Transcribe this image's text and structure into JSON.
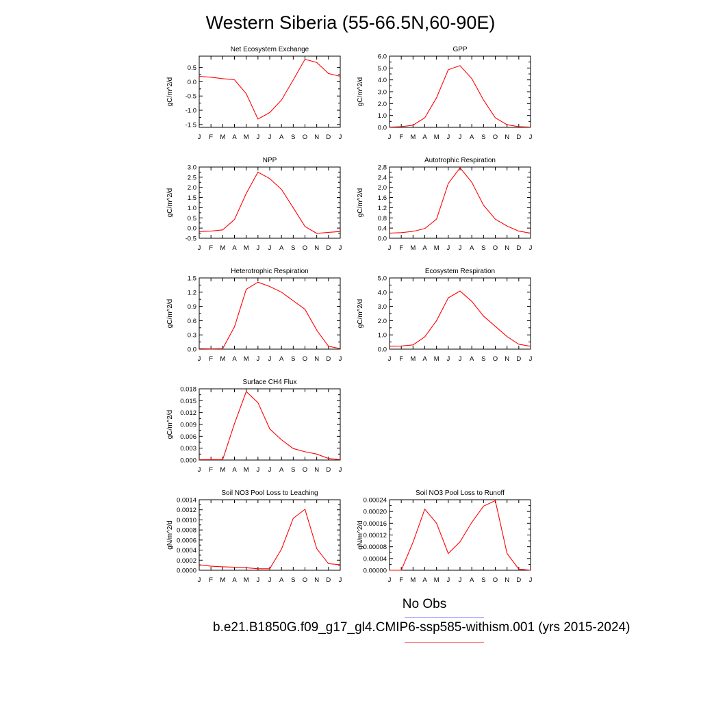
{
  "title": "Western Siberia (55-66.5N,60-90E)",
  "legend": {
    "obs_label": "No Obs",
    "obs_color": "#7f7fff",
    "model_label": "b.e21.B1850G.f09_g17_gl4.CMIP6-ssp585-withism.001 (yrs 2015-2024)",
    "model_color": "#ff7f7f"
  },
  "line_color": "#ff0000",
  "chart_data": [
    {
      "type": "line",
      "title": "Net Ecosystem Exchange",
      "ylabel": "gC/m^2/d",
      "xticks": [
        "J",
        "F",
        "M",
        "A",
        "M",
        "J",
        "J",
        "A",
        "S",
        "O",
        "N",
        "D",
        "J"
      ],
      "ylim": [
        -1.6,
        0.9
      ],
      "yticks": [
        -1.5,
        -1.0,
        -0.5,
        0.0,
        0.5
      ],
      "ytick_labels": [
        "-1.5",
        "-1.0",
        "-0.5",
        "0.0",
        "0.5"
      ],
      "series": [
        {
          "values": [
            0.19,
            0.16,
            0.11,
            0.07,
            -0.42,
            -1.31,
            -1.08,
            -0.64,
            0.06,
            0.79,
            0.68,
            0.29,
            0.19
          ]
        }
      ]
    },
    {
      "type": "line",
      "title": "GPP",
      "ylabel": "gC/m^2/d",
      "xticks": [
        "J",
        "F",
        "M",
        "A",
        "M",
        "J",
        "J",
        "A",
        "S",
        "O",
        "N",
        "D",
        "J"
      ],
      "ylim": [
        0.0,
        6.0
      ],
      "yticks": [
        0.0,
        1.0,
        2.0,
        3.0,
        4.0,
        5.0,
        6.0
      ],
      "ytick_labels": [
        "0.0",
        "1.0",
        "2.0",
        "3.0",
        "4.0",
        "5.0",
        "6.0"
      ],
      "series": [
        {
          "values": [
            0.02,
            0.06,
            0.18,
            0.8,
            2.5,
            4.85,
            5.2,
            4.1,
            2.3,
            0.8,
            0.22,
            0.06,
            0.02
          ]
        }
      ]
    },
    {
      "type": "line",
      "title": "NPP",
      "ylabel": "gC/m^2/d",
      "xticks": [
        "J",
        "F",
        "M",
        "A",
        "M",
        "J",
        "J",
        "A",
        "S",
        "O",
        "N",
        "D",
        "J"
      ],
      "ylim": [
        -0.5,
        3.0
      ],
      "yticks": [
        -0.5,
        0.0,
        0.5,
        1.0,
        1.5,
        2.0,
        2.5,
        3.0
      ],
      "ytick_labels": [
        "-0.5",
        "0.0",
        "0.5",
        "1.0",
        "1.5",
        "2.0",
        "2.5",
        "3.0"
      ],
      "series": [
        {
          "values": [
            -0.17,
            -0.15,
            -0.09,
            0.42,
            1.7,
            2.75,
            2.43,
            1.9,
            1.0,
            0.08,
            -0.26,
            -0.21,
            -0.17
          ]
        }
      ]
    },
    {
      "type": "line",
      "title": "Autotrophic Respiration",
      "ylabel": "gC/m^2/d",
      "xticks": [
        "J",
        "F",
        "M",
        "A",
        "M",
        "J",
        "J",
        "A",
        "S",
        "O",
        "N",
        "D",
        "J"
      ],
      "ylim": [
        0.0,
        2.8
      ],
      "yticks": [
        0.0,
        0.4,
        0.8,
        1.2,
        1.6,
        2.0,
        2.4,
        2.8
      ],
      "ytick_labels": [
        "0.0",
        "0.4",
        "0.8",
        "1.2",
        "1.6",
        "2.0",
        "2.4",
        "2.8"
      ],
      "series": [
        {
          "values": [
            0.2,
            0.22,
            0.27,
            0.38,
            0.75,
            2.15,
            2.77,
            2.2,
            1.3,
            0.75,
            0.48,
            0.28,
            0.2
          ]
        }
      ]
    },
    {
      "type": "line",
      "title": "Heterotrophic Respiration",
      "ylabel": "gC/m^2/d",
      "xticks": [
        "J",
        "F",
        "M",
        "A",
        "M",
        "J",
        "J",
        "A",
        "S",
        "O",
        "N",
        "D",
        "J"
      ],
      "ylim": [
        0.0,
        1.5
      ],
      "yticks": [
        0.0,
        0.3,
        0.6,
        0.9,
        1.2,
        1.5
      ],
      "ytick_labels": [
        "0.0",
        "0.3",
        "0.6",
        "0.9",
        "1.2",
        "1.5"
      ],
      "series": [
        {
          "values": [
            0.01,
            0.005,
            0.01,
            0.47,
            1.26,
            1.41,
            1.32,
            1.2,
            1.02,
            0.84,
            0.4,
            0.06,
            0.01
          ]
        }
      ]
    },
    {
      "type": "line",
      "title": "Ecosystem Respiration",
      "ylabel": "gC/m^2/d",
      "xticks": [
        "J",
        "F",
        "M",
        "A",
        "M",
        "J",
        "J",
        "A",
        "S",
        "O",
        "N",
        "D",
        "J"
      ],
      "ylim": [
        0.0,
        5.0
      ],
      "yticks": [
        0.0,
        1.0,
        2.0,
        3.0,
        4.0,
        5.0
      ],
      "ytick_labels": [
        "0.0",
        "1.0",
        "2.0",
        "3.0",
        "4.0",
        "5.0"
      ],
      "series": [
        {
          "values": [
            0.2,
            0.22,
            0.3,
            0.86,
            2.0,
            3.6,
            4.08,
            3.35,
            2.32,
            1.6,
            0.88,
            0.34,
            0.2
          ]
        }
      ]
    },
    {
      "type": "line",
      "title": "Surface CH4 Flux",
      "ylabel": "gC/m^2/d",
      "xticks": [
        "J",
        "F",
        "M",
        "A",
        "M",
        "J",
        "J",
        "A",
        "S",
        "O",
        "N",
        "D",
        "J"
      ],
      "ylim": [
        0.0,
        0.018
      ],
      "yticks": [
        0.0,
        0.003,
        0.006,
        0.009,
        0.012,
        0.015,
        0.018
      ],
      "ytick_labels": [
        "0.000",
        "0.003",
        "0.006",
        "0.009",
        "0.012",
        "0.015",
        "0.018"
      ],
      "series": [
        {
          "values": [
            0.0001,
            0.0001,
            0.0001,
            0.0092,
            0.0173,
            0.0145,
            0.0079,
            0.0051,
            0.0029,
            0.0021,
            0.0015,
            0.0004,
            0.0001
          ]
        }
      ]
    },
    {
      "type": "line",
      "title": "Soil NO3 Pool Loss to Leaching",
      "ylabel": "gN/m^2/d",
      "xticks": [
        "J",
        "F",
        "M",
        "A",
        "M",
        "J",
        "J",
        "A",
        "S",
        "O",
        "N",
        "D",
        "J"
      ],
      "ylim": [
        0.0,
        0.0014
      ],
      "yticks": [
        0.0,
        0.0002,
        0.0004,
        0.0006,
        0.0008,
        0.001,
        0.0012,
        0.0014
      ],
      "ytick_labels": [
        "0.0000",
        "0.0002",
        "0.0004",
        "0.0006",
        "0.0008",
        "0.0010",
        "0.0012",
        "0.0014"
      ],
      "series": [
        {
          "values": [
            0.00011,
            8e-05,
            7e-05,
            6e-05,
            5e-05,
            3e-05,
            3e-05,
            0.00042,
            0.00103,
            0.00121,
            0.00043,
            0.00013,
            0.00011
          ]
        }
      ]
    },
    {
      "type": "line",
      "title": "Soil NO3 Pool Loss to Runoff",
      "ylabel": "gN/m^2/d",
      "xticks": [
        "J",
        "F",
        "M",
        "A",
        "M",
        "J",
        "J",
        "A",
        "S",
        "O",
        "N",
        "D",
        "J"
      ],
      "ylim": [
        0.0,
        0.00024
      ],
      "yticks": [
        0.0,
        4e-05,
        8e-05,
        0.00012,
        0.00016,
        0.0002,
        0.00024
      ],
      "ytick_labels": [
        "0.00000",
        "0.00004",
        "0.00008",
        "0.00012",
        "0.00016",
        "0.00020",
        "0.00024"
      ],
      "series": [
        {
          "values": [
            0.0,
            0.0,
            9.5e-05,
            0.000208,
            0.00016,
            5.7e-05,
            9.7e-05,
            0.000163,
            0.000218,
            0.000237,
            5.7e-05,
            4e-06,
            0.0
          ]
        }
      ]
    }
  ]
}
